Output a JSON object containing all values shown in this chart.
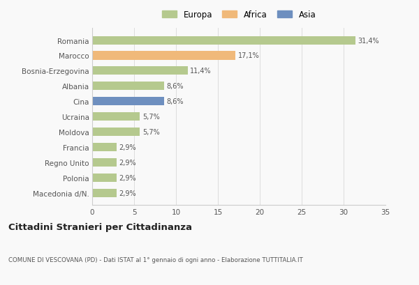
{
  "categories": [
    "Romania",
    "Marocco",
    "Bosnia-Erzegovina",
    "Albania",
    "Cina",
    "Ucraina",
    "Moldova",
    "Francia",
    "Regno Unito",
    "Polonia",
    "Macedonia d/N."
  ],
  "values": [
    31.4,
    17.1,
    11.4,
    8.6,
    8.6,
    5.7,
    5.7,
    2.9,
    2.9,
    2.9,
    2.9
  ],
  "labels": [
    "31,4%",
    "17,1%",
    "11,4%",
    "8,6%",
    "8,6%",
    "5,7%",
    "5,7%",
    "2,9%",
    "2,9%",
    "2,9%",
    "2,9%"
  ],
  "continents": [
    "Europa",
    "Africa",
    "Europa",
    "Europa",
    "Asia",
    "Europa",
    "Europa",
    "Europa",
    "Europa",
    "Europa",
    "Europa"
  ],
  "colors": {
    "Europa": "#b5c98e",
    "Africa": "#f0b97a",
    "Asia": "#6e8fbf"
  },
  "legend_labels": [
    "Europa",
    "Africa",
    "Asia"
  ],
  "legend_colors": [
    "#b5c98e",
    "#f0b97a",
    "#6e8fbf"
  ],
  "xlim": [
    0,
    35
  ],
  "xticks": [
    0,
    5,
    10,
    15,
    20,
    25,
    30,
    35
  ],
  "title_main": "Cittadini Stranieri per Cittadinanza",
  "title_sub": "COMUNE DI VESCOVANA (PD) - Dati ISTAT al 1° gennaio di ogni anno - Elaborazione TUTTITALIA.IT",
  "background_color": "#f9f9f9",
  "bar_height": 0.55
}
